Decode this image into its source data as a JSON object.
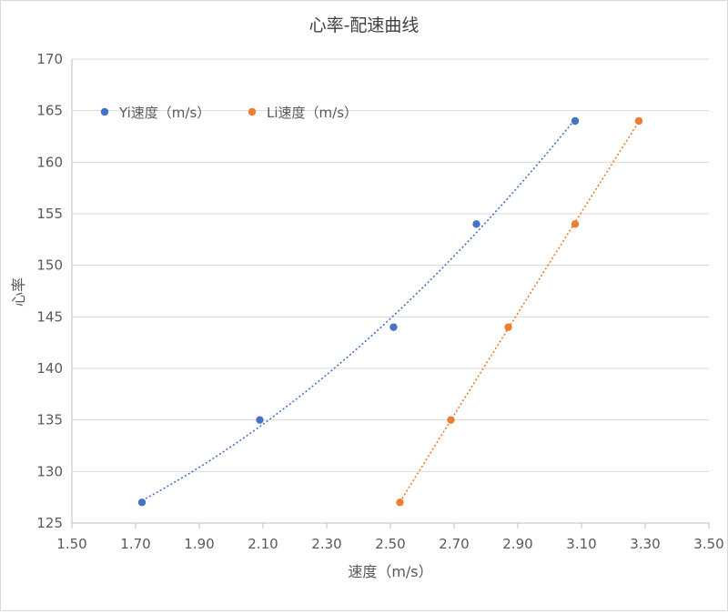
{
  "chart_data": {
    "type": "scatter",
    "title": "心率-配速曲线",
    "xlabel": "速度（m/s）",
    "ylabel": "心率",
    "xlim": [
      1.5,
      3.5
    ],
    "ylim": [
      125,
      170
    ],
    "x_ticks": [
      "1.50",
      "1.70",
      "1.90",
      "2.10",
      "2.30",
      "2.50",
      "2.70",
      "2.90",
      "3.10",
      "3.30",
      "3.50"
    ],
    "y_ticks": [
      "125",
      "130",
      "135",
      "140",
      "145",
      "150",
      "155",
      "160",
      "165",
      "170"
    ],
    "legend_position": "top-left",
    "grid": "horizontal",
    "series": [
      {
        "name": "Yi速度（m/s）",
        "color": "#4472C4",
        "points": [
          {
            "x": 1.72,
            "y": 127
          },
          {
            "x": 2.09,
            "y": 135
          },
          {
            "x": 2.51,
            "y": 144
          },
          {
            "x": 2.77,
            "y": 154
          },
          {
            "x": 3.08,
            "y": 164
          }
        ],
        "trendline": "polynomial",
        "trendline_range": [
          1.72,
          3.08
        ]
      },
      {
        "name": "Li速度（m/s）",
        "color": "#ED7D31",
        "points": [
          {
            "x": 2.53,
            "y": 127
          },
          {
            "x": 2.69,
            "y": 135
          },
          {
            "x": 2.87,
            "y": 144
          },
          {
            "x": 3.08,
            "y": 154
          },
          {
            "x": 3.28,
            "y": 164
          }
        ],
        "trendline": "polynomial",
        "trendline_range": [
          2.53,
          3.28
        ]
      }
    ]
  }
}
